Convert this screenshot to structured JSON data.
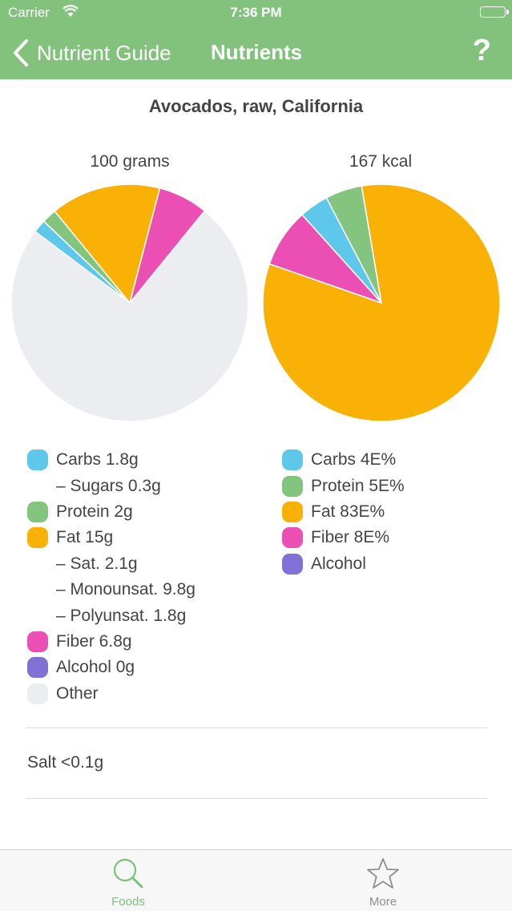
{
  "status": {
    "carrier": "Carrier",
    "time": "7:36 PM"
  },
  "nav": {
    "back_label": "Nutrient Guide",
    "title": "Nutrients",
    "help": "?"
  },
  "food": {
    "name": "Avocados, raw, California"
  },
  "mass_chart": {
    "label": "100 grams"
  },
  "energy_chart": {
    "label": "167 kcal"
  },
  "colors": {
    "carbs": "#5ec8ea",
    "protein": "#83c57e",
    "fat": "#f8b104",
    "fiber": "#ec4fb3",
    "alcohol": "#7f71d6",
    "other": "#ecedf1",
    "accent": "#82c27c"
  },
  "legend_mass": {
    "carbs": "Carbs 1.8g",
    "sugars": "– Sugars 0.3g",
    "protein": "Protein 2g",
    "fat": "Fat 15g",
    "sat": "– Sat. 2.1g",
    "mono": "– Monounsat. 9.8g",
    "poly": "– Polyunsat. 1.8g",
    "fiber": "Fiber 6.8g",
    "alcohol": "Alcohol 0g",
    "other": "Other"
  },
  "legend_energy": {
    "carbs": "Carbs 4E%",
    "protein": "Protein 5E%",
    "fat": "Fat 83E%",
    "fiber": "Fiber 8E%",
    "alcohol": "Alcohol"
  },
  "salt": "Salt <0.1g",
  "tabs": {
    "foods": "Foods",
    "more": "More"
  },
  "chart_data": [
    {
      "type": "pie",
      "title": "100 grams",
      "categories": [
        "Carbs",
        "Protein",
        "Fat",
        "Fiber",
        "Alcohol",
        "Other"
      ],
      "values": [
        1.8,
        2,
        15,
        6.8,
        0,
        74.4
      ],
      "colors": [
        "#5ec8ea",
        "#83c57e",
        "#f8b104",
        "#ec4fb3",
        "#7f71d6",
        "#ecedf1"
      ]
    },
    {
      "type": "pie",
      "title": "167 kcal",
      "categories": [
        "Carbs",
        "Protein",
        "Fat",
        "Fiber"
      ],
      "values": [
        4,
        5,
        83,
        8
      ],
      "colors": [
        "#5ec8ea",
        "#83c57e",
        "#f8b104",
        "#ec4fb3"
      ]
    }
  ]
}
